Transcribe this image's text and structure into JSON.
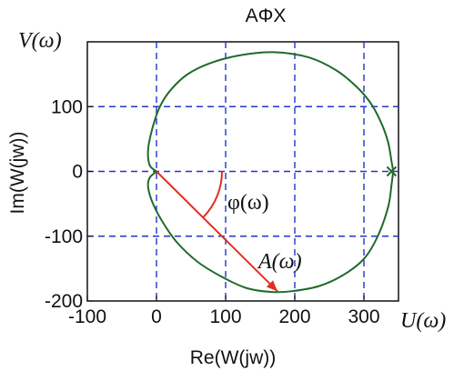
{
  "chart_data": {
    "type": "line",
    "title": "AΦX",
    "xlabel": "Re(W(jw))",
    "ylabel": "Im(W(jw))",
    "xlim": [
      -100,
      350
    ],
    "ylim": [
      -200,
      200
    ],
    "xticks": [
      -100,
      0,
      100,
      200,
      300
    ],
    "yticks": [
      -200,
      -100,
      0,
      100
    ],
    "x_tick_labels": [
      "-100",
      "0",
      "100",
      "200",
      "300"
    ],
    "y_tick_labels": [
      "-200",
      "-100",
      "0",
      "100"
    ],
    "grid": true,
    "curve_color": "#1f6b2a",
    "grid_color": "#2233cc",
    "arrow_color": "#e03020",
    "series": [
      {
        "x": [
          0,
          -10,
          -12,
          -5,
          5,
          20,
          45,
          80,
          125,
          170,
          220,
          260,
          290,
          310,
          325,
          335,
          340,
          342,
          340,
          335,
          320,
          300,
          270,
          235,
          195,
          165,
          130,
          95,
          60,
          30,
          10,
          -5,
          -12,
          -10,
          0
        ],
        "y": [
          0,
          10,
          35,
          70,
          100,
          125,
          150,
          168,
          180,
          184,
          176,
          156,
          130,
          105,
          75,
          45,
          15,
          0,
          -20,
          -55,
          -100,
          -135,
          -160,
          -177,
          -185,
          -186,
          -180,
          -163,
          -140,
          -110,
          -80,
          -50,
          -25,
          -10,
          0
        ]
      }
    ],
    "start_marker": {
      "x": 340,
      "y": 0,
      "symbol": "x"
    },
    "arrow": {
      "from": [
        0,
        0
      ],
      "to": [
        175,
        -185
      ]
    },
    "annotations": {
      "phi_label": "φ(ω)",
      "a_label": "A(ω)",
      "v_label": "V(ω)",
      "u_label": "U(ω)"
    }
  }
}
